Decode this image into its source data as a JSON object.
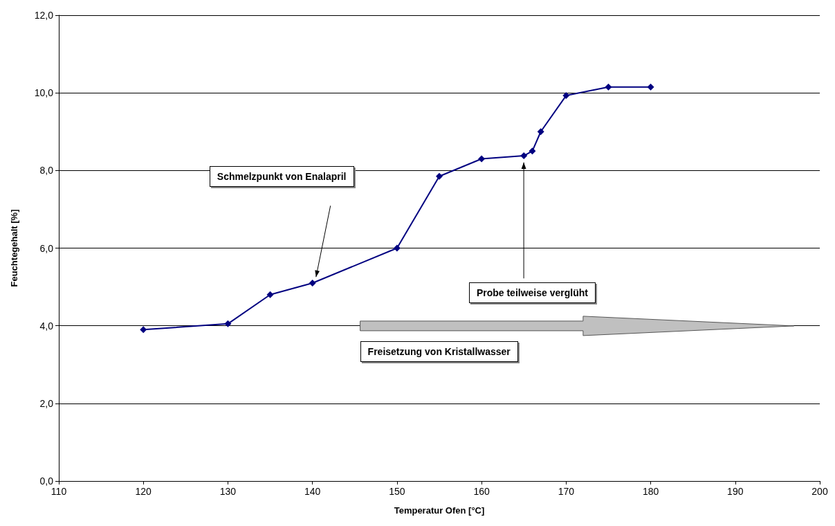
{
  "chart_data": {
    "type": "line",
    "xlabel": "Temperatur Ofen [°C]",
    "ylabel": "Feuchtegehalt [%]",
    "x": [
      120,
      130,
      135,
      140,
      150,
      155,
      160,
      165,
      166,
      167,
      170,
      175,
      180
    ],
    "series": [
      {
        "color": "#000080",
        "values": [
          3.9,
          4.05,
          4.8,
          5.1,
          6.0,
          7.85,
          8.3,
          8.38,
          8.5,
          9.0,
          9.93,
          10.15,
          10.15
        ]
      }
    ],
    "xlim": [
      110,
      200
    ],
    "xticks": [
      110,
      120,
      130,
      140,
      150,
      160,
      170,
      180,
      190,
      200
    ],
    "ylim": [
      0,
      12
    ],
    "yticks": [
      {
        "value": 0,
        "label": "0,0"
      },
      {
        "value": 2,
        "label": "2,0"
      },
      {
        "value": 4,
        "label": "4,0"
      },
      {
        "value": 6,
        "label": "6,0"
      },
      {
        "value": 8,
        "label": "8,0"
      },
      {
        "value": 10,
        "label": "10,0"
      },
      {
        "value": 12,
        "label": "12,0"
      }
    ],
    "grid": "y",
    "marker": "diamond",
    "line_style": "solid",
    "annotations": [
      "Schmelzpunkt von Enalapril",
      "Probe teilweise verglüht",
      "Freisetzung von Kristallwasser"
    ]
  }
}
